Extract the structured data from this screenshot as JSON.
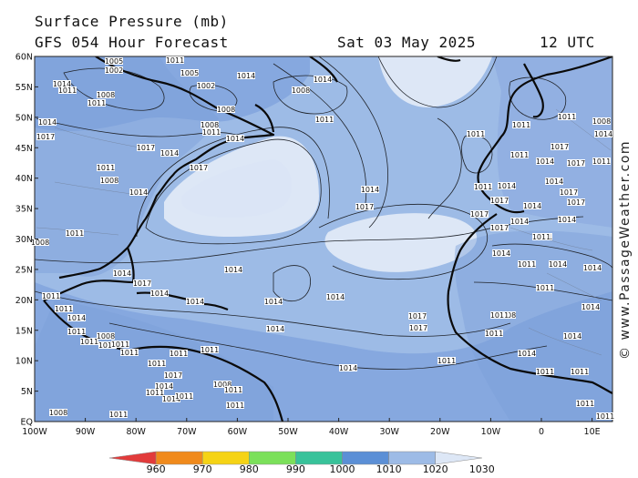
{
  "header": {
    "title": "Surface Pressure (mb)",
    "subtitle": "GFS 054 Hour Forecast",
    "date": "Sat 03 May 2025",
    "time": "12 UTC"
  },
  "credit": "© www.PassageWeather.com",
  "axes": {
    "lat_labels": [
      "60N",
      "55N",
      "50N",
      "45N",
      "40N",
      "35N",
      "30N",
      "25N",
      "20N",
      "15N",
      "10N",
      "5N",
      "EQ"
    ],
    "lon_labels": [
      "100W",
      "90W",
      "80W",
      "70W",
      "60W",
      "50W",
      "40W",
      "30W",
      "20W",
      "10W",
      "0",
      "10E"
    ]
  },
  "colorbar": {
    "ticks": [
      "960",
      "970",
      "980",
      "990",
      "1000",
      "1010",
      "1020",
      "1030"
    ],
    "colors": [
      "#e23b3b",
      "#f08a1c",
      "#f5d315",
      "#7be05a",
      "#38c29a",
      "#5b8fd6",
      "#9dbbe6",
      "#dde7f6"
    ]
  },
  "isobar_labels": [
    {
      "text": "1005"
    },
    {
      "text": "1002"
    },
    {
      "text": "1011"
    },
    {
      "text": "1005"
    },
    {
      "text": "1014"
    },
    {
      "text": "1014"
    },
    {
      "text": "1011"
    },
    {
      "text": "1008"
    },
    {
      "text": "1011"
    },
    {
      "text": "1002"
    },
    {
      "text": "1008"
    },
    {
      "text": "1014"
    },
    {
      "text": "1008"
    },
    {
      "text": "1011"
    },
    {
      "text": "1014"
    },
    {
      "text": "1011"
    },
    {
      "text": "1008"
    },
    {
      "text": "1014"
    },
    {
      "text": "1017"
    },
    {
      "text": "1017"
    },
    {
      "text": "1011"
    },
    {
      "text": "1008"
    },
    {
      "text": "1014"
    },
    {
      "text": "1017"
    },
    {
      "text": "1014"
    },
    {
      "text": "1011"
    },
    {
      "text": "1011"
    },
    {
      "text": "1008"
    },
    {
      "text": "1011"
    },
    {
      "text": "1017"
    },
    {
      "text": "1014"
    },
    {
      "text": "1017"
    },
    {
      "text": "1011"
    },
    {
      "text": "1011"
    },
    {
      "text": "1014"
    },
    {
      "text": "1014"
    },
    {
      "text": "1017"
    },
    {
      "text": "1014"
    },
    {
      "text": "1014"
    },
    {
      "text": "1017"
    },
    {
      "text": "1014"
    },
    {
      "text": "1011"
    },
    {
      "text": "1014"
    },
    {
      "text": "1017"
    },
    {
      "text": "1014"
    },
    {
      "text": "1017"
    },
    {
      "text": "1017"
    },
    {
      "text": "1014"
    },
    {
      "text": "1011"
    },
    {
      "text": "1008"
    },
    {
      "text": "1011"
    },
    {
      "text": "1014"
    },
    {
      "text": "1017"
    },
    {
      "text": "1014"
    },
    {
      "text": "1014"
    },
    {
      "text": "1017"
    },
    {
      "text": "1017"
    },
    {
      "text": "1017"
    },
    {
      "text": "1014"
    },
    {
      "text": "1014"
    },
    {
      "text": "1014"
    },
    {
      "text": "1014"
    },
    {
      "text": "1011"
    },
    {
      "text": "1014"
    },
    {
      "text": "1011"
    },
    {
      "text": "1014"
    },
    {
      "text": "1014"
    },
    {
      "text": "1011"
    },
    {
      "text": "1011"
    },
    {
      "text": "1014"
    },
    {
      "text": "1008"
    },
    {
      "text": "1011"
    },
    {
      "text": "1011"
    },
    {
      "text": "1014"
    },
    {
      "text": "1014"
    },
    {
      "text": "1011"
    },
    {
      "text": "1011"
    },
    {
      "text": "1017"
    },
    {
      "text": "1011"
    },
    {
      "text": "1011"
    },
    {
      "text": "1014"
    },
    {
      "text": "1011"
    },
    {
      "text": "1011"
    },
    {
      "text": "1008"
    },
    {
      "text": "1014"
    },
    {
      "text": "1011"
    },
    {
      "text": "1011"
    },
    {
      "text": "1011"
    },
    {
      "text": "1011"
    },
    {
      "text": "1011"
    },
    {
      "text": "1014"
    },
    {
      "text": "1014"
    },
    {
      "text": "1008"
    },
    {
      "text": "1011"
    },
    {
      "text": "1011"
    },
    {
      "text": "1011"
    },
    {
      "text": "1011"
    },
    {
      "text": "1008"
    },
    {
      "text": "1011"
    },
    {
      "text": "1011"
    },
    {
      "text": "1011"
    }
  ]
}
